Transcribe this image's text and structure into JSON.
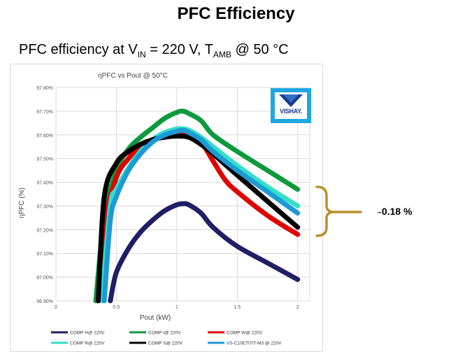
{
  "slide": {
    "title": "PFC Efficiency",
    "subtitle_parts": [
      "PFC efficiency at V",
      "IN",
      " = 220 V, T",
      "AMB",
      " @ 50 °C"
    ]
  },
  "logo": {
    "text": "VISHAY."
  },
  "annotation": {
    "tilde": "~",
    "value": "0.18 %"
  },
  "colors": {
    "brace": "#b8912c",
    "COMP H@ 220V": "#1f1f66",
    "COMP I@ 220V": "#0c9a3c",
    "COMP W@ 220V": "#e00000",
    "COMP R@ 220V": "#33e0c8",
    "COMP S@ 220V": "#000000",
    "VS-C10ET07T-M3  @ 220V": "#1c9ad6"
  },
  "chart_data": {
    "type": "line",
    "title": "ηPFC vs Pout @ 50°C",
    "xlabel": "Pout (kW)",
    "ylabel": "ηPFC  (%)",
    "xlim": [
      0,
      2.1
    ],
    "ylim": [
      96.9,
      97.8
    ],
    "x_ticks": [
      "0",
      "0.5",
      "1",
      "1.5",
      "2"
    ],
    "y_ticks": [
      "96.90%",
      "97.00%",
      "97.10%",
      "97.20%",
      "97.30%",
      "97.40%",
      "97.50%",
      "97.60%",
      "97.70%",
      "97.80%"
    ],
    "grid": true,
    "legend_position": "bottom",
    "series": [
      {
        "name": "COMP H@ 220V",
        "x": [
          0.45,
          0.5,
          0.6,
          0.7,
          0.8,
          0.9,
          1.0,
          1.05,
          1.1,
          1.2,
          1.3,
          1.5,
          1.75,
          2.0
        ],
        "y": [
          96.9,
          97.02,
          97.12,
          97.19,
          97.24,
          97.28,
          97.305,
          97.31,
          97.305,
          97.27,
          97.21,
          97.13,
          97.06,
          96.99
        ]
      },
      {
        "name": "COMP I@ 220V",
        "x": [
          0.33,
          0.4,
          0.5,
          0.6,
          0.7,
          0.8,
          0.9,
          1.0,
          1.05,
          1.1,
          1.2,
          1.3,
          1.5,
          1.75,
          2.0
        ],
        "y": [
          96.9,
          97.25,
          97.45,
          97.54,
          97.59,
          97.63,
          97.67,
          97.695,
          97.7,
          97.69,
          97.66,
          97.6,
          97.53,
          97.45,
          97.37
        ]
      },
      {
        "name": "COMP W@ 220V",
        "x": [
          0.35,
          0.4,
          0.5,
          0.6,
          0.7,
          0.8,
          0.9,
          1.0,
          1.1,
          1.2,
          1.3,
          1.4,
          1.5,
          1.75,
          2.0
        ],
        "y": [
          96.9,
          97.22,
          97.42,
          97.5,
          97.55,
          97.58,
          97.6,
          97.605,
          97.6,
          97.57,
          97.49,
          97.41,
          97.36,
          97.26,
          97.18
        ]
      },
      {
        "name": "COMP R@ 220V",
        "x": [
          0.38,
          0.45,
          0.5,
          0.6,
          0.7,
          0.8,
          0.9,
          1.0,
          1.05,
          1.1,
          1.2,
          1.3,
          1.5,
          1.75,
          2.0
        ],
        "y": [
          96.9,
          97.3,
          97.37,
          97.46,
          97.53,
          97.58,
          97.61,
          97.625,
          97.625,
          97.62,
          97.59,
          97.55,
          97.47,
          97.38,
          97.3
        ]
      },
      {
        "name": "COMP S@ 220V",
        "x": [
          0.35,
          0.4,
          0.5,
          0.6,
          0.7,
          0.8,
          0.9,
          1.0,
          1.1,
          1.2,
          1.3,
          1.5,
          1.75,
          2.0
        ],
        "y": [
          96.9,
          97.34,
          97.48,
          97.53,
          97.56,
          97.58,
          97.59,
          97.595,
          97.59,
          97.56,
          97.52,
          97.43,
          97.32,
          97.21
        ]
      },
      {
        "name": "VS-C10ET07T-M3  @ 220V",
        "x": [
          0.4,
          0.45,
          0.5,
          0.6,
          0.7,
          0.8,
          0.9,
          1.0,
          1.05,
          1.1,
          1.2,
          1.3,
          1.5,
          1.75,
          2.0
        ],
        "y": [
          96.9,
          97.24,
          97.34,
          97.45,
          97.52,
          97.57,
          97.6,
          97.615,
          97.62,
          97.61,
          97.58,
          97.53,
          97.45,
          97.36,
          97.27
        ]
      }
    ]
  }
}
